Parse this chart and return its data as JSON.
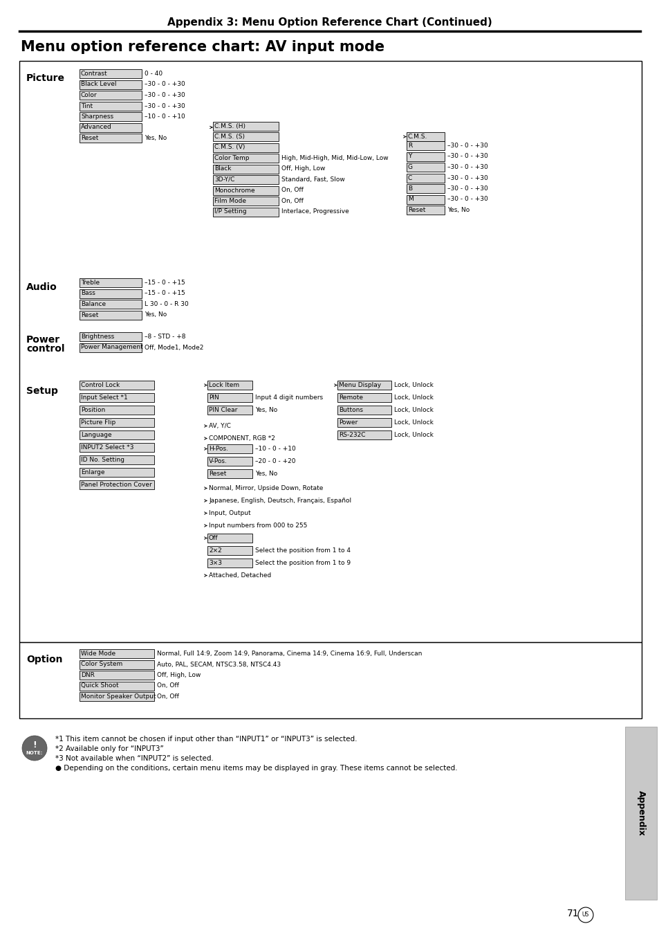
{
  "title_top": "Appendix 3: Menu Option Reference Chart (Continued)",
  "title_main": "Menu option reference chart: AV input mode",
  "pic_items": [
    {
      "label": "Contrast",
      "value": "0 - 40"
    },
    {
      "label": "Black Level",
      "value": "–30 - 0 - +30"
    },
    {
      "label": "Color",
      "value": "–30 - 0 - +30"
    },
    {
      "label": "Tint",
      "value": "–30 - 0 - +30"
    },
    {
      "label": "Sharpness",
      "value": "–10 - 0 - +10"
    },
    {
      "label": "Advanced",
      "value": ""
    },
    {
      "label": "Reset",
      "value": "Yes, No"
    }
  ],
  "adv_col2": [
    {
      "label": "C.M.S. (H)",
      "value": ""
    },
    {
      "label": "C.M.S. (S)",
      "value": ""
    },
    {
      "label": "C.M.S. (V)",
      "value": ""
    },
    {
      "label": "Color Temp",
      "value": "High, Mid-High, Mid, Mid-Low, Low"
    },
    {
      "label": "Black",
      "value": "Off, High, Low"
    },
    {
      "label": "3D-Y/C",
      "value": "Standard, Fast, Slow"
    },
    {
      "label": "Monochrome",
      "value": "On, Off"
    },
    {
      "label": "Film Mode",
      "value": "On, Off"
    },
    {
      "label": "I/P Setting",
      "value": "Interlace, Progressive"
    }
  ],
  "cms_header": "C.M.S.",
  "cms_items": [
    {
      "label": "R",
      "value": "–30 - 0 - +30"
    },
    {
      "label": "Y",
      "value": "–30 - 0 - +30"
    },
    {
      "label": "G",
      "value": "–30 - 0 - +30"
    },
    {
      "label": "C",
      "value": "–30 - 0 - +30"
    },
    {
      "label": "B",
      "value": "–30 - 0 - +30"
    },
    {
      "label": "M",
      "value": "–30 - 0 - +30"
    },
    {
      "label": "Reset",
      "value": "Yes, No"
    }
  ],
  "audio_items": [
    {
      "label": "Treble",
      "value": "–15 - 0 - +15"
    },
    {
      "label": "Bass",
      "value": "–15 - 0 - +15"
    },
    {
      "label": "Balance",
      "value": "L 30 - 0 - R 30"
    },
    {
      "label": "Reset",
      "value": "Yes, No"
    }
  ],
  "power_items": [
    {
      "label": "Brightness",
      "value": "–8 - STD - +8"
    },
    {
      "label": "Power Management",
      "value": "Off, Mode1, Mode2"
    }
  ],
  "setup_col1": [
    "Control Lock",
    "Input Select *1",
    "Position",
    "Picture Flip",
    "Language",
    "INPUT2 Select *3",
    "ID No. Setting",
    "Enlarge",
    "Panel Protection Cover"
  ],
  "lock_items": [
    {
      "label": "Lock Item",
      "value": ""
    },
    {
      "label": "PIN",
      "value": "Input 4 digit numbers"
    },
    {
      "label": "PIN Clear",
      "value": "Yes, No"
    }
  ],
  "menu_items": [
    {
      "label": "Menu Display",
      "value": "Lock, Unlock"
    },
    {
      "label": "Remote",
      "value": "Lock, Unlock"
    },
    {
      "label": "Buttons",
      "value": "Lock, Unlock"
    },
    {
      "label": "Power",
      "value": "Lock, Unlock"
    },
    {
      "label": "RS-232C",
      "value": "Lock, Unlock"
    }
  ],
  "pos_items": [
    {
      "label": "H-Pos.",
      "value": "–10 - 0 - +10"
    },
    {
      "label": "V-Pos.",
      "value": "–20 - 0 - +20"
    },
    {
      "label": "Reset",
      "value": "Yes, No"
    }
  ],
  "enlarge_items": [
    {
      "label": "Off",
      "value": ""
    },
    {
      "label": "2×2",
      "value": "Select the position from 1 to 4"
    },
    {
      "label": "3×3",
      "value": "Select the position from 1 to 9"
    }
  ],
  "option_items": [
    {
      "label": "Wide Mode",
      "value": "Normal, Full 14:9, Zoom 14:9, Panorama, Cinema 14:9, Cinema 16:9, Full, Underscan"
    },
    {
      "label": "Color System",
      "value": "Auto, PAL, SECAM, NTSC3.58, NTSC4.43"
    },
    {
      "label": "DNR",
      "value": "Off, High, Low"
    },
    {
      "label": "Quick Shoot",
      "value": "On, Off"
    },
    {
      "label": "Monitor Speaker Output",
      "value": "On, Off"
    }
  ],
  "footnotes": [
    "*1 This item cannot be chosen if input other than “INPUT1” or “INPUT3” is selected.",
    "*2 Available only for “INPUT3”",
    "*3 Not available when “INPUT2” is selected.",
    "● Depending on the conditions, certain menu items may be displayed in gray. These items cannot be selected."
  ],
  "page_num": "71"
}
